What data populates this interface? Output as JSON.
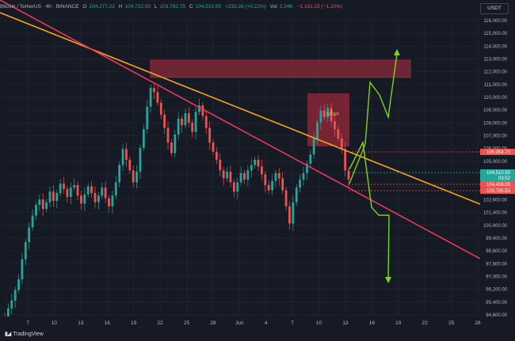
{
  "header": {
    "symbol": "Bitcoin / TetherUS · 4h · BINANCE",
    "open_label": "O",
    "open": "104,277.22",
    "high_label": "H",
    "high": "104,722.50",
    "low_label": "L",
    "low": "103,782.75",
    "close_label": "C",
    "close": "104,510.50",
    "change": "+233.28 (+0.22%)",
    "vol_label": "Vol",
    "vol": "2.24K",
    "vol_change": "−1,161.23 (−1.10%)"
  },
  "currency": "USDT",
  "brand": "TradingView",
  "annotation_text": "บล็อก",
  "colors": {
    "background": "#161a25",
    "up": "#26a69a",
    "down": "#ef5350",
    "orange_line": "#f7a21b",
    "pink_line": "#e8385a",
    "projection": "#7ed321",
    "zone": "#9c2a3a"
  },
  "chart_data": {
    "type": "candlestick",
    "x_tick_labels": [
      "7",
      "10",
      "13",
      "16",
      "19",
      "22",
      "25",
      "28",
      "Jun",
      "4",
      "7",
      "10",
      "13",
      "16",
      "19",
      "22",
      "25",
      "28"
    ],
    "y_tick_labels": [
      "116,000.00",
      "115,000.00",
      "114,000.00",
      "113,000.00",
      "112,000.00",
      "111,000.00",
      "110,000.00",
      "109,000.00",
      "108,000.00",
      "107,000.00",
      "106,000.00",
      "105,000.00",
      "104,000.00",
      "103,000.00",
      "102,600.00",
      "101,400.00",
      "100,400.00",
      "99,400.00",
      "98,600.00",
      "97,800.00",
      "97,000.00",
      "96,200.00",
      "95,400.00",
      "94,600.00"
    ],
    "price_tags": [
      {
        "label": "106,054.76",
        "value": 106054.76,
        "color": "#ef5350"
      },
      {
        "label": "104,510.50",
        "value": 104510.5,
        "color": "#26a69a"
      },
      {
        "label": "03:52",
        "value": 104200,
        "color": "#26a69a"
      },
      {
        "label": "104,406.03",
        "value": 103880,
        "color": "#ef5350"
      },
      {
        "label": "103,785.53",
        "value": 103470,
        "color": "#ef5350"
      }
    ],
    "price_tag_values": [
      106054.76,
      104510.5,
      104406.03,
      103785.53
    ],
    "resistance_zone": {
      "top": 113500,
      "bottom": 112200
    },
    "range_box": {
      "top": 111000,
      "bottom": 107000
    },
    "closes": [
      94200,
      94800,
      95400,
      96200,
      97000,
      98500,
      99800,
      100900,
      101800,
      102600,
      103000,
      102300,
      102800,
      103600,
      102900,
      103500,
      104200,
      103800,
      103200,
      103900,
      104100,
      103300,
      102700,
      103400,
      104000,
      103500,
      102800,
      103300,
      103900,
      103100,
      102500,
      103300,
      104300,
      105600,
      106800,
      106000,
      105200,
      104300,
      105100,
      106900,
      108300,
      110000,
      111400,
      111100,
      110300,
      109400,
      108400,
      107300,
      106500,
      107900,
      109100,
      108600,
      109500,
      108800,
      108100,
      109600,
      110100,
      109300,
      108400,
      107300,
      106600,
      106000,
      105200,
      104600,
      105100,
      104300,
      103600,
      104300,
      105000,
      104500,
      105200,
      105600,
      106000,
      105500,
      104900,
      104100,
      103700,
      104400,
      105000,
      104600,
      103700,
      102500,
      101200,
      102800,
      103900,
      104500,
      105000,
      105700,
      106400,
      107600,
      108800,
      109700,
      109200,
      109900,
      108900,
      108300,
      107600,
      106800,
      105200,
      104510
    ],
    "trendlines": [
      {
        "name": "",
        "color": "#f7a21b"
      },
      {
        "name": "",
        "color": "#e8385a"
      }
    ],
    "projection_up_end": 113400,
    "projection_down_end": 97200
  }
}
